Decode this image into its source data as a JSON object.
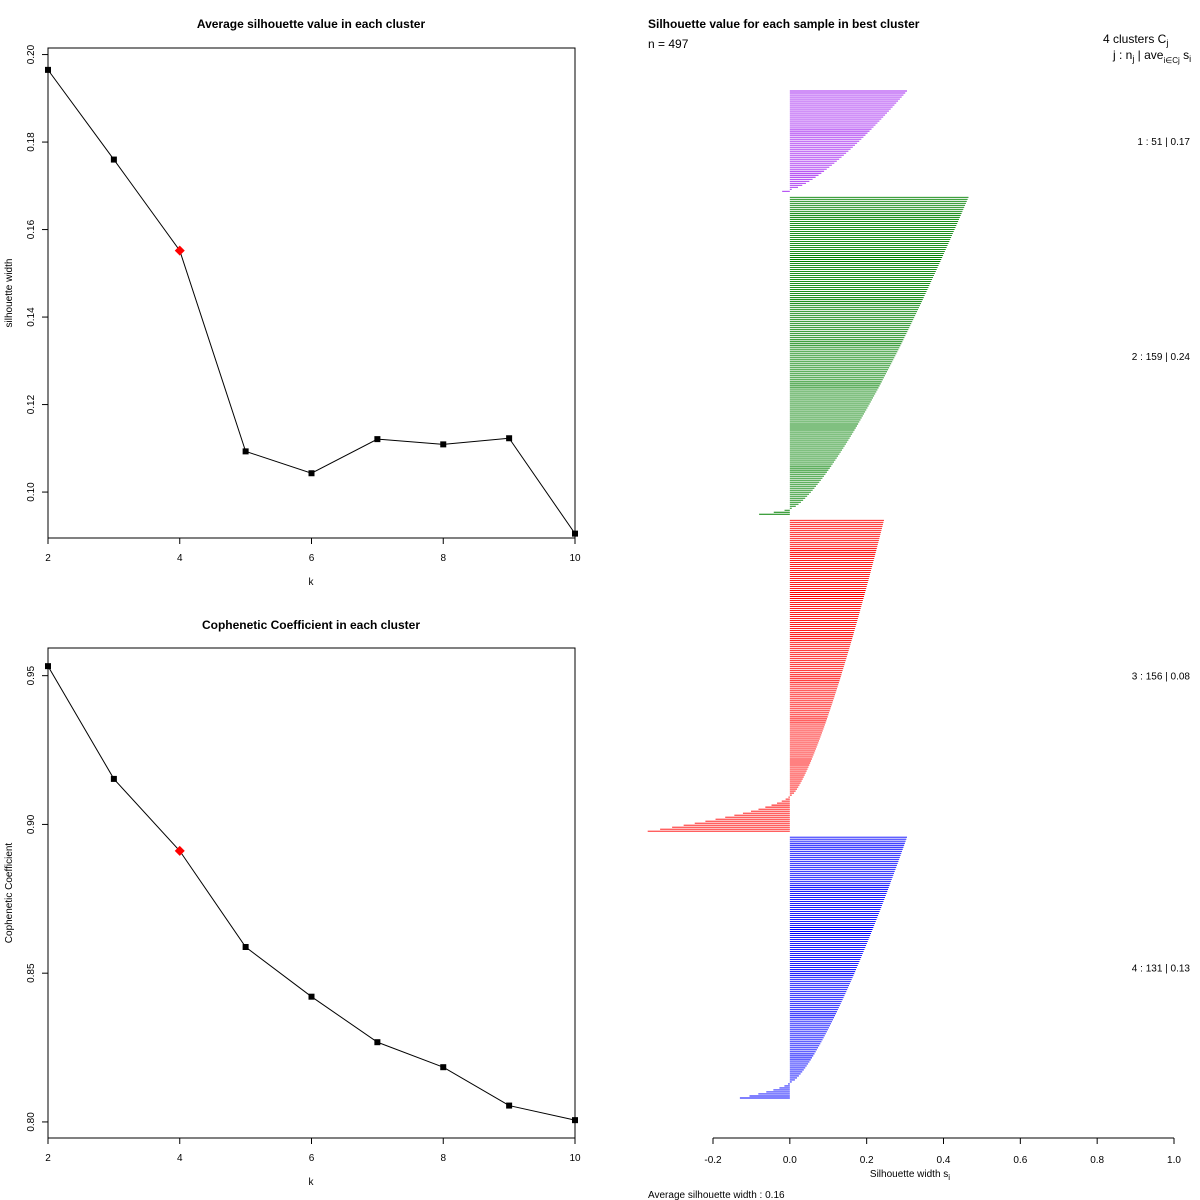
{
  "chart_data": [
    {
      "type": "line",
      "title": "Average silhouette value in each cluster",
      "xlabel": "k",
      "ylabel": "silhouette width",
      "x": [
        2,
        3,
        4,
        5,
        6,
        7,
        8,
        9,
        10
      ],
      "values": [
        0.1965,
        0.176,
        0.1552,
        0.1093,
        0.1043,
        0.1121,
        0.1109,
        0.1123,
        0.0905
      ],
      "highlight_k": 4,
      "highlight_color": "#ff0000",
      "xlim": [
        2,
        10
      ],
      "ylim": [
        0.0895,
        0.2015
      ],
      "xticks": [
        "2",
        "4",
        "6",
        "8",
        "10"
      ],
      "yticks": [
        "0.10",
        "0.12",
        "0.14",
        "0.16",
        "0.18",
        "0.20"
      ]
    },
    {
      "type": "line",
      "title": "Cophenetic Coefficient in each cluster",
      "xlabel": "k",
      "ylabel": "Cophenetic Coefficient",
      "x": [
        2,
        3,
        4,
        5,
        6,
        7,
        8,
        9,
        10
      ],
      "values": [
        0.9532,
        0.9153,
        0.8911,
        0.8588,
        0.8421,
        0.8268,
        0.8184,
        0.8055,
        0.8006
      ],
      "highlight_k": 4,
      "highlight_color": "#ff0000",
      "xlim": [
        2,
        10
      ],
      "ylim": [
        0.7946,
        0.9593
      ],
      "xticks": [
        "2",
        "4",
        "6",
        "8",
        "10"
      ],
      "yticks": [
        "0.80",
        "0.85",
        "0.90",
        "0.95"
      ]
    },
    {
      "type": "bar",
      "orientation": "horizontal",
      "title": "Silhouette value for each sample in best cluster",
      "n_label": "n = 497",
      "header_line1": "4  clusters  C",
      "header_line1_sub": "j",
      "header_line2": "j :  n",
      "header_line2_sub": "j",
      "header_line2_tail": " | ave",
      "header_line2_sub2": "i∈Cj",
      "header_line2_end": " s",
      "header_line2_end_sub": "i",
      "xlabel": "Silhouette width s",
      "xlabel_sub": "i",
      "xlim": [
        -0.2,
        1.0
      ],
      "xticks": [
        "-0.2",
        "0.0",
        "0.2",
        "0.4",
        "0.6",
        "0.8",
        "1.0"
      ],
      "footer": "Average silhouette width :  0.16",
      "clusters": [
        {
          "id": 1,
          "n": 51,
          "avg": 0.17,
          "label": "1 :   51  |  0.17",
          "color": "#a020f0",
          "max": 0.3,
          "min": -0.02,
          "neg": 1
        },
        {
          "id": 2,
          "n": 159,
          "avg": 0.24,
          "label": "2 :   159  |  0.24",
          "color": "#008000",
          "max": 0.46,
          "min": -0.08,
          "neg": 3
        },
        {
          "id": 3,
          "n": 156,
          "avg": 0.08,
          "label": "3 :   156  |  0.08",
          "color": "#ff0000",
          "max": 0.24,
          "min": -0.37,
          "neg": 18
        },
        {
          "id": 4,
          "n": 131,
          "avg": 0.13,
          "label": "4 :   131  |  0.13",
          "color": "#0000ff",
          "max": 0.3,
          "min": -0.13,
          "neg": 8
        }
      ]
    }
  ]
}
